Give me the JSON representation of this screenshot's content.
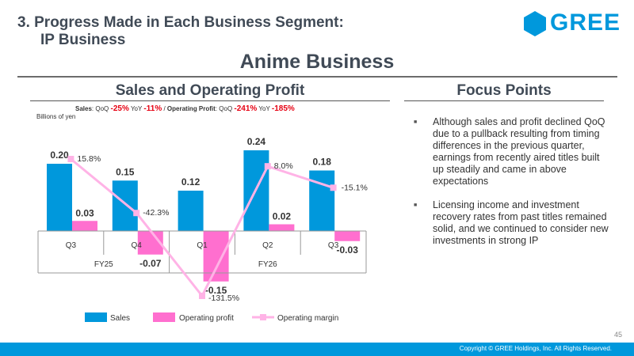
{
  "header": {
    "title_line1": "3. Progress Made in Each Business Segment:",
    "title_line2": "IP Business",
    "logo_text": "GREE",
    "section_title": "Anime Business"
  },
  "left_panel": {
    "heading": "Sales and Operating Profit",
    "kpi": {
      "sales_label": "Sales",
      "qoq_label": "QoQ",
      "yoy_label": "YoY",
      "sales_qoq": "-25%",
      "sales_yoy": "-11%",
      "separator": "/",
      "op_label": "Operating Profit",
      "op_qoq": "-241%",
      "op_yoy": "-185%"
    },
    "unit": "Billions of yen"
  },
  "chart_data": {
    "type": "bar",
    "categories": [
      "Q3",
      "Q4",
      "Q1",
      "Q2",
      "Q3"
    ],
    "groups": [
      {
        "label": "FY25",
        "categories": [
          0,
          1
        ]
      },
      {
        "label": "FY26",
        "categories": [
          2,
          3,
          4
        ]
      }
    ],
    "series": [
      {
        "name": "Sales",
        "type": "bar",
        "color": "#0098dc",
        "values": [
          0.2,
          0.15,
          0.12,
          0.24,
          0.18
        ],
        "labels": [
          "0.20",
          "0.15",
          "0.12",
          "0.24",
          "0.18"
        ]
      },
      {
        "name": "Operating profit",
        "type": "bar",
        "color": "#ff6fcf",
        "values": [
          0.03,
          -0.07,
          -0.15,
          0.02,
          -0.03
        ],
        "labels": [
          "0.03",
          "-0.07",
          "-0.15",
          "0.02",
          "-0.03"
        ]
      },
      {
        "name": "Operating margin",
        "type": "line",
        "color": "#ffb3e6",
        "values": [
          15.8,
          -42.3,
          -131.5,
          8.0,
          -15.1
        ],
        "labels": [
          "15.8%",
          "-42.3%",
          "-131.5%",
          "8.0%",
          "-15.1%"
        ]
      }
    ],
    "ylim": [
      -0.15,
      0.24
    ],
    "y2lim": [
      -131.5,
      15.8
    ]
  },
  "right_panel": {
    "heading": "Focus Points",
    "bullets": [
      "Although sales and profit declined QoQ due to a pullback resulting from timing differences in the previous quarter, earnings from recently aired titles built up steadily and came in above expectations",
      "Licensing income and investment recovery rates from past titles remained solid, and we continued to consider new investments in strong IP"
    ]
  },
  "footer": {
    "page_number": "45",
    "copyright": "Copyright © GREE Holdings, Inc. All Rights Reserved."
  },
  "colors": {
    "brand": "#0098dc",
    "title": "#404a56",
    "accent_red": "#e60012"
  },
  "icons": [
    "gree-logo-hexagon-icon",
    "square-bullet-icon"
  ]
}
